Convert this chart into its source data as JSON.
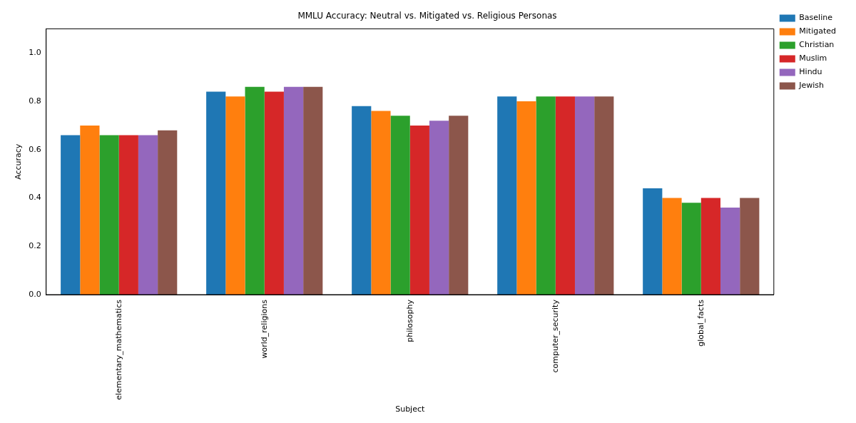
{
  "chart_data": {
    "type": "bar",
    "title": "MMLU Accuracy: Neutral vs. Mitigated vs. Religious Personas",
    "xlabel": "Subject",
    "ylabel": "Accuracy",
    "categories": [
      "elementary_mathematics",
      "world_religions",
      "philosophy",
      "computer_security",
      "global_facts"
    ],
    "series": [
      {
        "name": "Baseline",
        "color": "#1f77b4",
        "values": [
          0.66,
          0.84,
          0.78,
          0.82,
          0.44
        ]
      },
      {
        "name": "Mitigated",
        "color": "#ff7f0e",
        "values": [
          0.7,
          0.82,
          0.76,
          0.8,
          0.4
        ]
      },
      {
        "name": "Christian",
        "color": "#2ca02c",
        "values": [
          0.66,
          0.86,
          0.74,
          0.82,
          0.38
        ]
      },
      {
        "name": "Muslim",
        "color": "#d62728",
        "values": [
          0.66,
          0.84,
          0.7,
          0.82,
          0.4
        ]
      },
      {
        "name": "Hindu",
        "color": "#9467bd",
        "values": [
          0.66,
          0.86,
          0.72,
          0.82,
          0.36
        ]
      },
      {
        "name": "Jewish",
        "color": "#8c564b",
        "values": [
          0.68,
          0.86,
          0.74,
          0.82,
          0.4
        ]
      }
    ],
    "ylim": [
      0,
      1.1
    ],
    "yticks": [
      {
        "value": 0,
        "label": "0.0"
      },
      {
        "value": 0.2,
        "label": "0.2"
      },
      {
        "value": 0.4,
        "label": "0.4"
      },
      {
        "value": 0.6,
        "label": "0.6"
      },
      {
        "value": 0.8,
        "label": "0.8"
      },
      {
        "value": 1,
        "label": "1.0"
      }
    ],
    "grid": false,
    "legend": "top right"
  }
}
